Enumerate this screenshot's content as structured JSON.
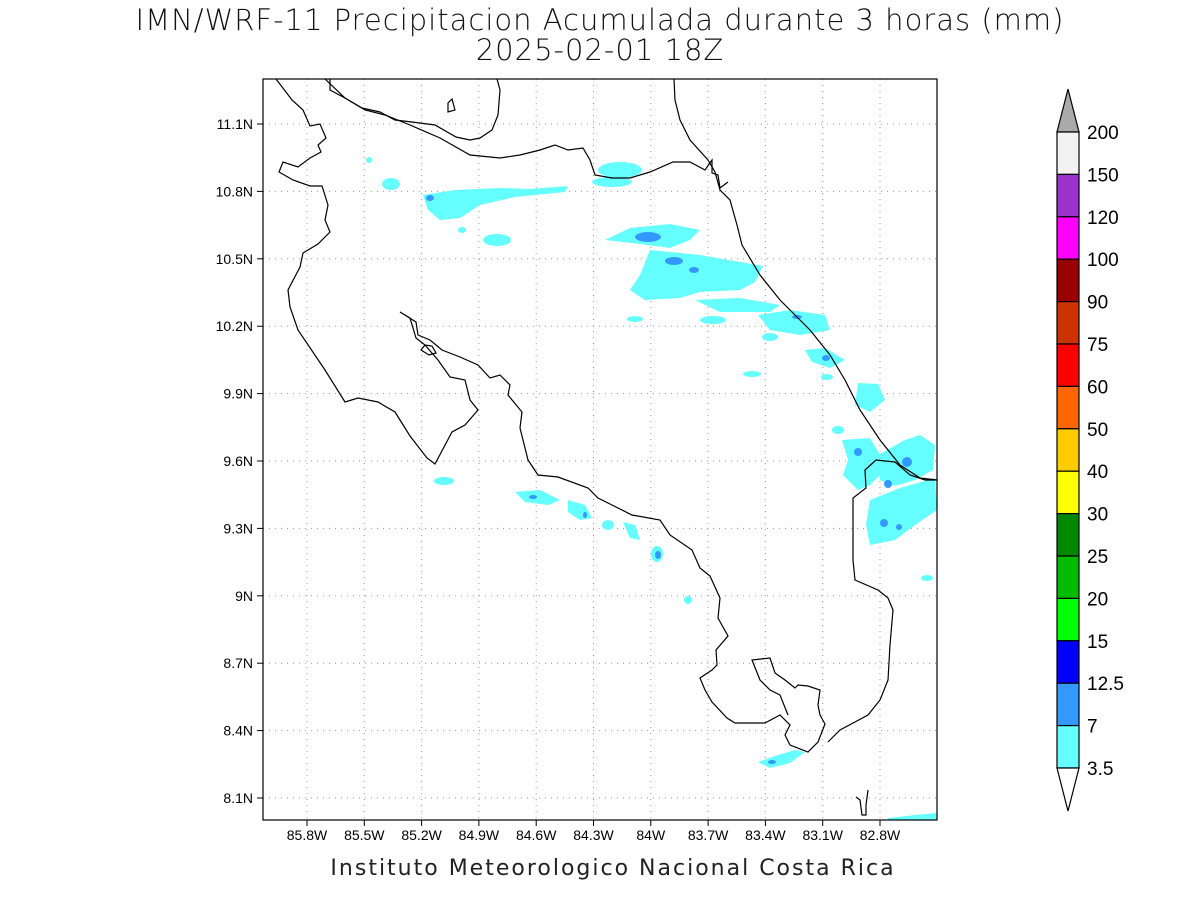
{
  "title": "IMN/WRF-11 Precipitacion Acumulada durante 3 horas (mm)",
  "subtitle": "2025-02-01 18Z",
  "credit": "Instituto Meteorologico Nacional Costa Rica",
  "lat_ticks": [
    "11.1N",
    "10.8N",
    "10.5N",
    "10.2N",
    "9.9N",
    "9.6N",
    "9.3N",
    "9N",
    "8.7N",
    "8.4N",
    "8.1N"
  ],
  "lon_ticks": [
    "85.8W",
    "85.5W",
    "85.2W",
    "84.9W",
    "84.6W",
    "84.3W",
    "84W",
    "83.7W",
    "83.4W",
    "83.1W",
    "82.8W"
  ],
  "colorbar": {
    "levels": [
      "200",
      "150",
      "120",
      "100",
      "90",
      "75",
      "60",
      "50",
      "40",
      "30",
      "25",
      "20",
      "15",
      "12.5",
      "7",
      "3.5"
    ],
    "colors": [
      "#f2f2f2",
      "#9933cc",
      "#ff00ff",
      "#990000",
      "#cc3300",
      "#ff0000",
      "#ff6600",
      "#ffcc00",
      "#ffff00",
      "#008800",
      "#00bb00",
      "#00ff00",
      "#0000ff",
      "#3399ff",
      "#66ffff"
    ],
    "top_color": "#aaaaaa"
  },
  "precip_colors": {
    "light": "#66ffff",
    "moderate": "#3399ff"
  }
}
